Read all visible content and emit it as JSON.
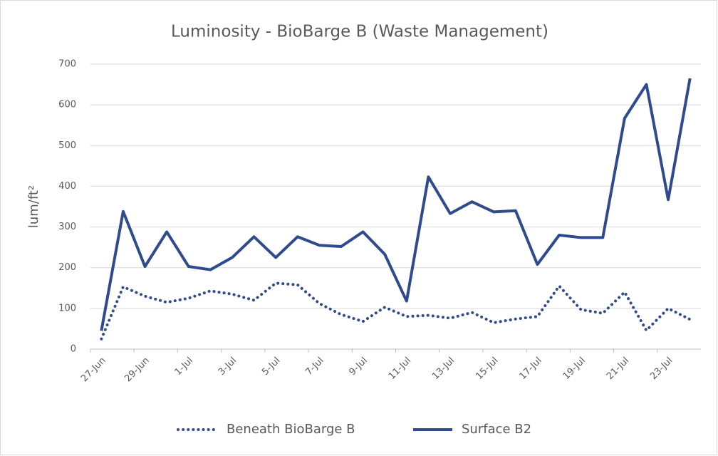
{
  "chart_data": {
    "type": "line",
    "title": "Luminosity - BioBarge B (Waste Management)",
    "y_label": "lum/ft²",
    "categories": [
      "27-Jun",
      null,
      "29-Jun",
      null,
      "1-Jul",
      null,
      "3-Jul",
      null,
      "5-Jul",
      null,
      "7-Jul",
      null,
      "9-Jul",
      null,
      "11-Jul",
      null,
      "13-Jul",
      null,
      "15-Jul",
      null,
      "17-Jul",
      null,
      "19-Jul",
      null,
      "21-Jul",
      null,
      "23-Jul",
      null
    ],
    "series": [
      {
        "name": "Beneath BioBarge B",
        "color": "#2f4a8d",
        "dotted": true,
        "values": [
          25,
          153,
          130,
          115,
          125,
          143,
          135,
          120,
          162,
          158,
          112,
          85,
          68,
          103,
          80,
          83,
          76,
          90,
          65,
          74,
          80,
          155,
          97,
          88,
          140,
          46,
          100,
          73
        ]
      },
      {
        "name": "Surface B2",
        "color": "#2f4a8d",
        "dotted": false,
        "values": [
          45,
          338,
          203,
          288,
          203,
          195,
          225,
          276,
          225,
          276,
          255,
          252,
          288,
          233,
          118,
          423,
          333,
          362,
          337,
          340,
          208,
          280,
          274,
          274,
          567,
          650,
          367,
          665
        ]
      }
    ],
    "ylim": [
      0,
      700
    ],
    "yticks": [
      0,
      100,
      200,
      300,
      400,
      500,
      600,
      700
    ],
    "grid": true,
    "legend": "bottom"
  }
}
